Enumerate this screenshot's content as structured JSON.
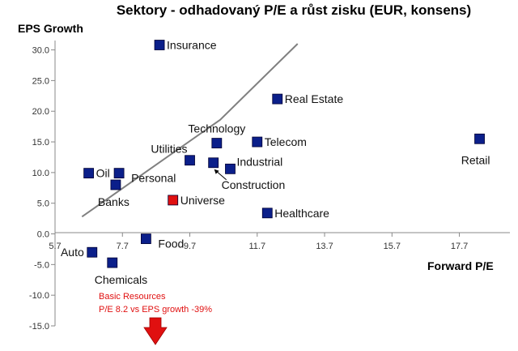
{
  "chart_data": {
    "type": "scatter",
    "title": "Sektory - odhadovaný P/E a růst zisku (EUR, konsens)",
    "xlabel": "Forward P/E",
    "ylabel": "EPS Growth",
    "xlim": [
      5.7,
      19.2
    ],
    "ylim": [
      -15,
      31
    ],
    "x_ticks": [
      5.7,
      7.7,
      9.7,
      11.7,
      13.7,
      15.7,
      17.7
    ],
    "x_tick_labels": [
      "5.7",
      "7.7",
      "9.7",
      "11.7",
      "13.7",
      "15.7",
      "17.7"
    ],
    "y_ticks": [
      30,
      25,
      20,
      15,
      10,
      5,
      0,
      -5,
      -10,
      -15
    ],
    "y_tick_labels": [
      "30.0",
      "25.0",
      "20.0",
      "15.0",
      "10.0",
      "5.0",
      "0.0",
      "-5.0",
      "-10.0",
      "-15.0"
    ],
    "grid": false,
    "trendline": {
      "x": [
        6.5,
        10.6,
        12.9
      ],
      "y": [
        2.8,
        18.6,
        31
      ]
    },
    "points": [
      {
        "label": "Insurance",
        "x": 8.8,
        "y": 30.8,
        "color": "#0b1f8a",
        "label_pos": "right"
      },
      {
        "label": "Real Estate",
        "x": 12.3,
        "y": 22.0,
        "color": "#0b1f8a",
        "label_pos": "right"
      },
      {
        "label": "Technology",
        "x": 10.5,
        "y": 14.8,
        "color": "#0b1f8a",
        "label_pos": "top"
      },
      {
        "label": "Telecom",
        "x": 11.7,
        "y": 15.0,
        "color": "#0b1f8a",
        "label_pos": "right"
      },
      {
        "label": "Retail",
        "x": 18.3,
        "y": 15.5,
        "color": "#0b1f8a",
        "label_pos": "below-left"
      },
      {
        "label": "Utilities",
        "x": 9.7,
        "y": 12.0,
        "color": "#0b1f8a",
        "label_pos": "upper-left"
      },
      {
        "label": "Industrial",
        "x": 10.9,
        "y": 10.6,
        "color": "#0b1f8a",
        "label_pos": "upper-right"
      },
      {
        "label": "Construction",
        "x": 10.4,
        "y": 11.6,
        "color": "#0b1f8a",
        "label_pos": "pointer"
      },
      {
        "label": "Oil",
        "x": 6.7,
        "y": 9.9,
        "color": "#0b1f8a",
        "label_pos": "right"
      },
      {
        "label": "Personal",
        "x": 7.6,
        "y": 9.9,
        "color": "#0b1f8a",
        "label_pos": "lower-right"
      },
      {
        "label": "Banks",
        "x": 7.5,
        "y": 8.0,
        "color": "#0b1f8a",
        "label_pos": "below"
      },
      {
        "label": "Universe",
        "x": 9.2,
        "y": 5.5,
        "color": "#e01010",
        "label_pos": "right"
      },
      {
        "label": "Healthcare",
        "x": 12.0,
        "y": 3.4,
        "color": "#0b1f8a",
        "label_pos": "right"
      },
      {
        "label": "Food",
        "x": 8.4,
        "y": -0.8,
        "color": "#0b1f8a",
        "label_pos": "lower-right"
      },
      {
        "label": "Auto",
        "x": 6.8,
        "y": -3.0,
        "color": "#0b1f8a",
        "label_pos": "left"
      },
      {
        "label": "Chemicals",
        "x": 7.4,
        "y": -4.7,
        "color": "#0b1f8a",
        "label_pos": "below"
      }
    ],
    "annotation": {
      "lines": [
        "Basic Resources",
        "P/E 8.2 vs EPS growth -39%"
      ],
      "color": "#e01010",
      "arrow": "down"
    }
  }
}
